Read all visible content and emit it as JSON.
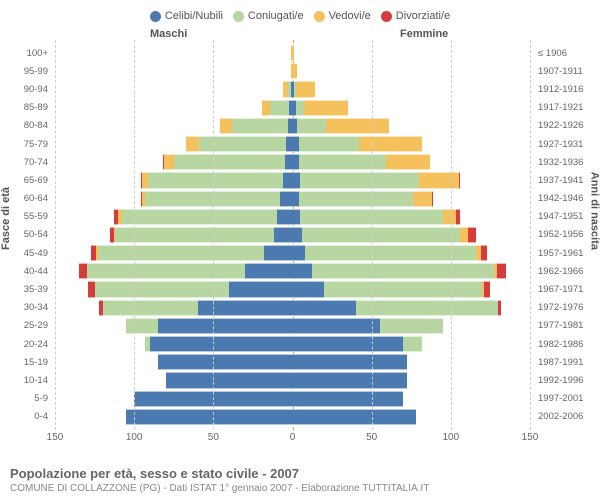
{
  "legend": [
    {
      "label": "Celibi/Nubili",
      "color": "#4a7ab0"
    },
    {
      "label": "Coniugati/e",
      "color": "#b7d6a1"
    },
    {
      "label": "Vedovi/e",
      "color": "#f4c15d"
    },
    {
      "label": "Divorziati/e",
      "color": "#d73c3c"
    }
  ],
  "headers": {
    "male": "Maschi",
    "female": "Femmine"
  },
  "axis_titles": {
    "left": "Fasce di età",
    "right": "Anni di nascita"
  },
  "title": "Popolazione per età, sesso e stato civile - 2007",
  "subtitle": "COMUNE DI COLLAZZONE (PG) - Dati ISTAT 1° gennaio 2007 - Elaborazione TUTTITALIA.IT",
  "x_ticks": [
    150,
    100,
    50,
    0,
    50,
    100,
    150
  ],
  "x_max": 150,
  "colors": {
    "celibi": "#4a7ab0",
    "coniugati": "#b7d6a1",
    "vedovi": "#f4c15d",
    "divorziati": "#d73c3c",
    "grid": "#cccccc",
    "center": "#e9a13c",
    "text": "#666666",
    "background": "#ffffff"
  },
  "rows": [
    {
      "age": "100+",
      "birth": "≤ 1906",
      "m": {
        "cel": 0,
        "con": 0,
        "ved": 1,
        "div": 0
      },
      "f": {
        "cel": 0,
        "con": 0,
        "ved": 1,
        "div": 0
      }
    },
    {
      "age": "95-99",
      "birth": "1907-1911",
      "m": {
        "cel": 0,
        "con": 0,
        "ved": 1,
        "div": 0
      },
      "f": {
        "cel": 0,
        "con": 0,
        "ved": 3,
        "div": 0
      }
    },
    {
      "age": "90-94",
      "birth": "1912-1916",
      "m": {
        "cel": 1,
        "con": 2,
        "ved": 3,
        "div": 0
      },
      "f": {
        "cel": 1,
        "con": 1,
        "ved": 12,
        "div": 0
      }
    },
    {
      "age": "85-89",
      "birth": "1917-1921",
      "m": {
        "cel": 2,
        "con": 12,
        "ved": 5,
        "div": 0
      },
      "f": {
        "cel": 2,
        "con": 5,
        "ved": 28,
        "div": 0
      }
    },
    {
      "age": "80-84",
      "birth": "1922-1926",
      "m": {
        "cel": 3,
        "con": 35,
        "ved": 8,
        "div": 0
      },
      "f": {
        "cel": 3,
        "con": 18,
        "ved": 40,
        "div": 0
      }
    },
    {
      "age": "75-79",
      "birth": "1927-1931",
      "m": {
        "cel": 4,
        "con": 55,
        "ved": 8,
        "div": 0
      },
      "f": {
        "cel": 4,
        "con": 38,
        "ved": 40,
        "div": 0
      }
    },
    {
      "age": "70-74",
      "birth": "1932-1936",
      "m": {
        "cel": 5,
        "con": 70,
        "ved": 6,
        "div": 1
      },
      "f": {
        "cel": 4,
        "con": 55,
        "ved": 28,
        "div": 0
      }
    },
    {
      "age": "65-69",
      "birth": "1937-1941",
      "m": {
        "cel": 6,
        "con": 85,
        "ved": 4,
        "div": 1
      },
      "f": {
        "cel": 5,
        "con": 75,
        "ved": 25,
        "div": 1
      }
    },
    {
      "age": "60-64",
      "birth": "1942-1946",
      "m": {
        "cel": 8,
        "con": 85,
        "ved": 2,
        "div": 1
      },
      "f": {
        "cel": 4,
        "con": 72,
        "ved": 12,
        "div": 1
      }
    },
    {
      "age": "55-59",
      "birth": "1947-1951",
      "m": {
        "cel": 10,
        "con": 98,
        "ved": 2,
        "div": 3
      },
      "f": {
        "cel": 5,
        "con": 90,
        "ved": 8,
        "div": 3
      }
    },
    {
      "age": "50-54",
      "birth": "1952-1956",
      "m": {
        "cel": 12,
        "con": 100,
        "ved": 1,
        "div": 2
      },
      "f": {
        "cel": 6,
        "con": 100,
        "ved": 5,
        "div": 5
      }
    },
    {
      "age": "45-49",
      "birth": "1957-1961",
      "m": {
        "cel": 18,
        "con": 105,
        "ved": 1,
        "div": 3
      },
      "f": {
        "cel": 8,
        "con": 108,
        "ved": 3,
        "div": 4
      }
    },
    {
      "age": "40-44",
      "birth": "1962-1966",
      "m": {
        "cel": 30,
        "con": 100,
        "ved": 0,
        "div": 5
      },
      "f": {
        "cel": 12,
        "con": 115,
        "ved": 2,
        "div": 6
      }
    },
    {
      "age": "35-39",
      "birth": "1967-1971",
      "m": {
        "cel": 40,
        "con": 85,
        "ved": 0,
        "div": 4
      },
      "f": {
        "cel": 20,
        "con": 100,
        "ved": 1,
        "div": 4
      }
    },
    {
      "age": "30-34",
      "birth": "1972-1976",
      "m": {
        "cel": 60,
        "con": 60,
        "ved": 0,
        "div": 2
      },
      "f": {
        "cel": 40,
        "con": 90,
        "ved": 0,
        "div": 2
      }
    },
    {
      "age": "25-29",
      "birth": "1977-1981",
      "m": {
        "cel": 85,
        "con": 20,
        "ved": 0,
        "div": 0
      },
      "f": {
        "cel": 55,
        "con": 40,
        "ved": 0,
        "div": 0
      }
    },
    {
      "age": "20-24",
      "birth": "1982-1986",
      "m": {
        "cel": 90,
        "con": 3,
        "ved": 0,
        "div": 0
      },
      "f": {
        "cel": 70,
        "con": 12,
        "ved": 0,
        "div": 0
      }
    },
    {
      "age": "15-19",
      "birth": "1987-1991",
      "m": {
        "cel": 85,
        "con": 0,
        "ved": 0,
        "div": 0
      },
      "f": {
        "cel": 72,
        "con": 0,
        "ved": 0,
        "div": 0
      }
    },
    {
      "age": "10-14",
      "birth": "1992-1996",
      "m": {
        "cel": 80,
        "con": 0,
        "ved": 0,
        "div": 0
      },
      "f": {
        "cel": 72,
        "con": 0,
        "ved": 0,
        "div": 0
      }
    },
    {
      "age": "5-9",
      "birth": "1997-2001",
      "m": {
        "cel": 100,
        "con": 0,
        "ved": 0,
        "div": 0
      },
      "f": {
        "cel": 70,
        "con": 0,
        "ved": 0,
        "div": 0
      }
    },
    {
      "age": "0-4",
      "birth": "2002-2006",
      "m": {
        "cel": 105,
        "con": 0,
        "ved": 0,
        "div": 0
      },
      "f": {
        "cel": 78,
        "con": 0,
        "ved": 0,
        "div": 0
      }
    }
  ]
}
